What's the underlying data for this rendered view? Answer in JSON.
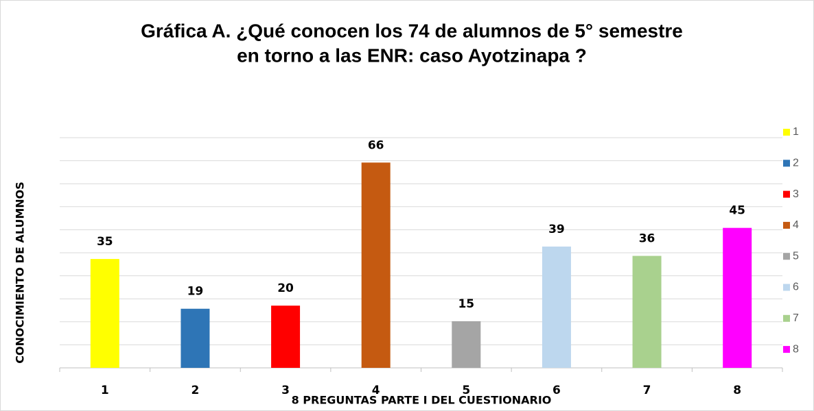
{
  "chart_data": {
    "type": "bar",
    "title": [
      "Gráfica A. ¿Qué conocen los 74 de alumnos de 5° semestre",
      "en torno a las ENR: caso Ayotzinapa ?"
    ],
    "x_label": "8 PREGUNTAS PARTE I DEL CUESTIONARIO",
    "y_label": "CONOCIMIENTO DE ALUMNOS",
    "categories": [
      "1",
      "2",
      "3",
      "4",
      "5",
      "6",
      "7",
      "8"
    ],
    "values": [
      35,
      19,
      20,
      66,
      15,
      39,
      36,
      45
    ],
    "colors": [
      "#ffff00",
      "#2e75b6",
      "#ff0000",
      "#c55a11",
      "#a5a5a5",
      "#bdd7ee",
      "#a9d18e",
      "#ff00ff"
    ],
    "ylim": [
      0,
      74
    ],
    "yticks": [
      0,
      7.4,
      14.8,
      22.2,
      29.6,
      37,
      44.4,
      51.8,
      59.2,
      66.6,
      74
    ],
    "grid": true,
    "legend": "right"
  }
}
